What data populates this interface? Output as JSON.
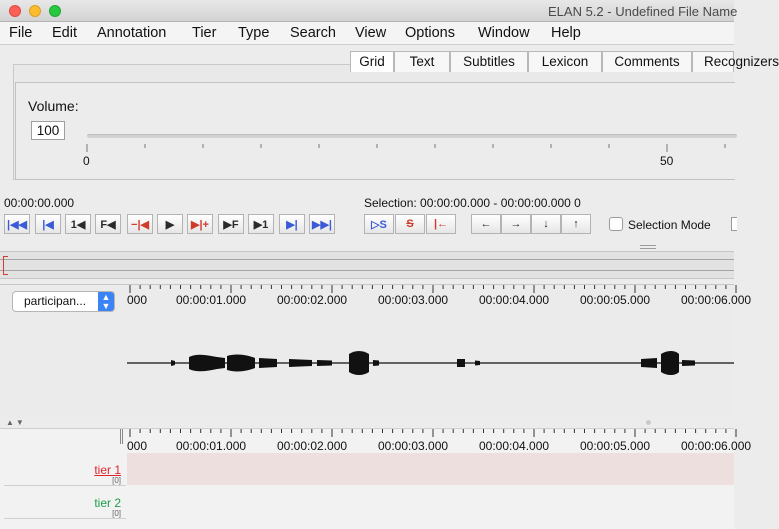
{
  "window": {
    "title": "ELAN 5.2 - Undefined File Name"
  },
  "menubar": {
    "items": [
      "File",
      "Edit",
      "Annotation",
      "Tier",
      "Type",
      "Search",
      "View",
      "Options",
      "Window",
      "Help"
    ]
  },
  "tabs": {
    "items": [
      "Grid",
      "Text",
      "Subtitles",
      "Lexicon",
      "Comments",
      "Recognizers"
    ],
    "active": "Grid"
  },
  "volume": {
    "label": "Volume:",
    "value": "100",
    "scale_min_label": "0",
    "scale_mid_label": "50"
  },
  "transport": {
    "media_time": "00:00:00.000",
    "selection_text": "Selection: 00:00:00.000 - 00:00:00.000  0",
    "buttons": [
      {
        "name": "go-to-begin",
        "glyph": "|◀◀"
      },
      {
        "name": "previous-frame",
        "glyph": "|◀"
      },
      {
        "name": "previous-second",
        "glyph": "1◀"
      },
      {
        "name": "previous-frame-fast",
        "glyph": "F◀"
      },
      {
        "name": "previous-pixel",
        "glyph": "−|◀"
      },
      {
        "name": "play-pause",
        "glyph": "▶"
      },
      {
        "name": "next-pixel",
        "glyph": "▶|+"
      },
      {
        "name": "next-frame-fast",
        "glyph": "▶F"
      },
      {
        "name": "next-second",
        "glyph": "▶1"
      },
      {
        "name": "next-frame",
        "glyph": "▶|"
      },
      {
        "name": "go-to-end",
        "glyph": "▶▶|"
      }
    ],
    "selection_buttons": [
      {
        "name": "play-selection",
        "glyph": "▷S"
      },
      {
        "name": "clear-selection",
        "glyph": "S"
      },
      {
        "name": "selection-boundary",
        "glyph": "|←"
      }
    ],
    "nav_buttons": [
      {
        "name": "previous-annotation",
        "glyph": "←"
      },
      {
        "name": "next-annotation",
        "glyph": "→"
      },
      {
        "name": "annotation-down",
        "glyph": "↓"
      },
      {
        "name": "annotation-up",
        "glyph": "↑"
      }
    ],
    "selection_mode_label": "Selection Mode"
  },
  "waveform": {
    "tier_selector_value": "participan...",
    "ruler_labels": [
      "000",
      "00:00:01.000",
      "00:00:02.000",
      "00:00:03.000",
      "00:00:04.000",
      "00:00:05.000",
      "00:00:06.000"
    ]
  },
  "annotation": {
    "ruler_labels": [
      "000",
      "00:00:01.000",
      "00:00:02.000",
      "00:00:03.000",
      "00:00:04.000",
      "00:00:05.000",
      "00:00:06.000"
    ],
    "tiers": [
      {
        "name": "tier 1",
        "count": "[0]",
        "color": "#e0262b",
        "row_bg": "#ecdfdd"
      },
      {
        "name": "tier 2",
        "count": "[0]",
        "color": "#1c9e4a",
        "row_bg": "#f2f2f2"
      }
    ]
  }
}
